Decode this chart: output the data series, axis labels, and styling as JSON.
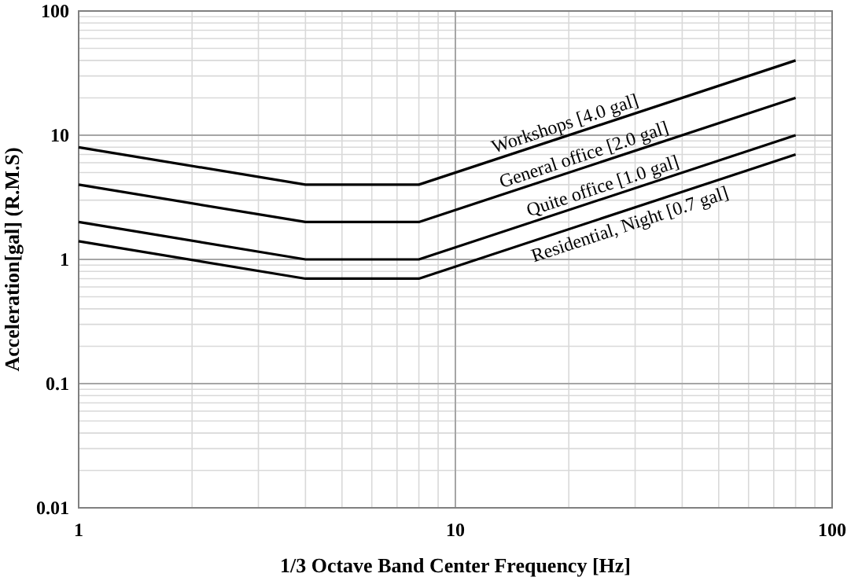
{
  "chart_data": {
    "type": "line",
    "xlabel": "1/3 Octave Band Center Frequency [Hz]",
    "ylabel": "Acceleration[gal] (R.M.S)",
    "log": "xy",
    "grid": true,
    "marker": "none",
    "line_style": "solid",
    "xlim": [
      1,
      100
    ],
    "xticks": [
      1,
      10,
      100
    ],
    "ylim": [
      0.01,
      100
    ],
    "yticks": [
      0.01,
      0.1,
      1,
      10,
      100
    ],
    "series": [
      {
        "name": "Workshops [4.0 gal]",
        "color": "#000000",
        "x": [
          1,
          4,
          8,
          80
        ],
        "values": [
          8,
          4,
          4,
          40
        ]
      },
      {
        "name": "General office [2.0 gal]",
        "color": "#000000",
        "x": [
          1,
          4,
          8,
          80
        ],
        "values": [
          4,
          2,
          2,
          20
        ]
      },
      {
        "name": "Quite office [1.0 gal]",
        "color": "#000000",
        "x": [
          1,
          4,
          8,
          80
        ],
        "values": [
          2,
          1,
          1,
          10
        ]
      },
      {
        "name": "Residential, Night [0.7 gal]",
        "color": "#000000",
        "x": [
          1,
          4,
          8,
          80
        ],
        "values": [
          1.4,
          0.7,
          0.7,
          7
        ]
      }
    ]
  }
}
